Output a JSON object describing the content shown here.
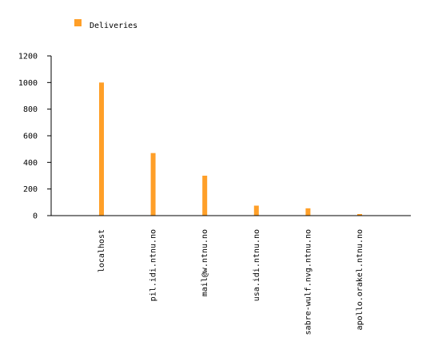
{
  "chart_data": {
    "type": "bar",
    "categories": [
      "localhost",
      "pil.idi.ntnu.no",
      "mail@w.ntnu.no",
      "usa.idi.ntnu.no",
      "sabre-wulf.nvg.ntnu.no",
      "apollo.orakel.ntnu.no"
    ],
    "series": [
      {
        "name": "Deliveries",
        "values": [
          1000,
          470,
          300,
          75,
          55,
          12
        ]
      }
    ],
    "y_ticks": [
      0,
      200,
      400,
      600,
      800,
      1000,
      1200
    ],
    "ylim": [
      0,
      1200
    ],
    "legend": {
      "position": "top-left",
      "label": "Deliveries"
    },
    "grid": false,
    "colors": {
      "bar": "#ff9f28",
      "axis": "#000000",
      "text": "#000000"
    }
  }
}
